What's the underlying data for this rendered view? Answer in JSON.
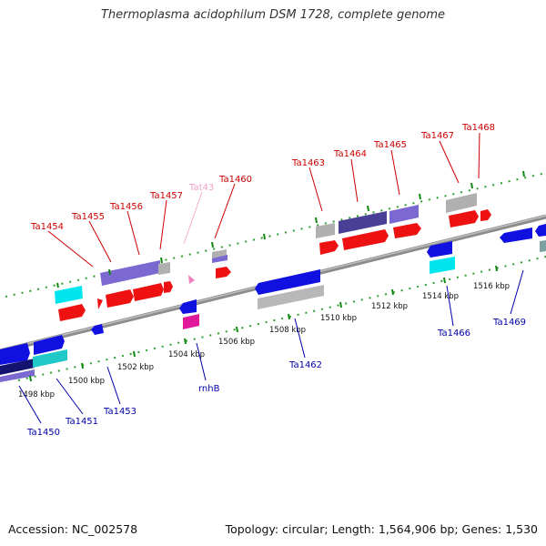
{
  "title": "Thermoplasma acidophilum DSM 1728, complete genome",
  "footer": {
    "accession": "Accession: NC_002578",
    "summary": "Topology: circular; Length: 1,564,906 bp; Genes: 1,530"
  },
  "colors": {
    "backbone": "#8c8c8c",
    "forward_label": "#cc0000",
    "reverse_label": "#0000aa",
    "faded_label": "#f0a0c8",
    "tick": "#228b22"
  },
  "scale_ticks": [
    "1498 kbp",
    "1500 kbp",
    "1502 kbp",
    "1504 kbp",
    "1506 kbp",
    "1508 kbp",
    "1510 kbp",
    "1512 kbp",
    "1514 kbp",
    "1516 kbp"
  ],
  "gene_labels_top": [
    "Ta1454",
    "Ta1455",
    "Ta1456",
    "Ta1457",
    "Tat43",
    "Ta1460",
    "Ta1463",
    "Ta1464",
    "Ta1465",
    "Ta1467",
    "Ta1468"
  ],
  "gene_labels_bottom": [
    "Ta1450",
    "Ta1451",
    "Ta1453",
    "rnhB",
    "Ta1462",
    "Ta1466",
    "Ta1469"
  ]
}
